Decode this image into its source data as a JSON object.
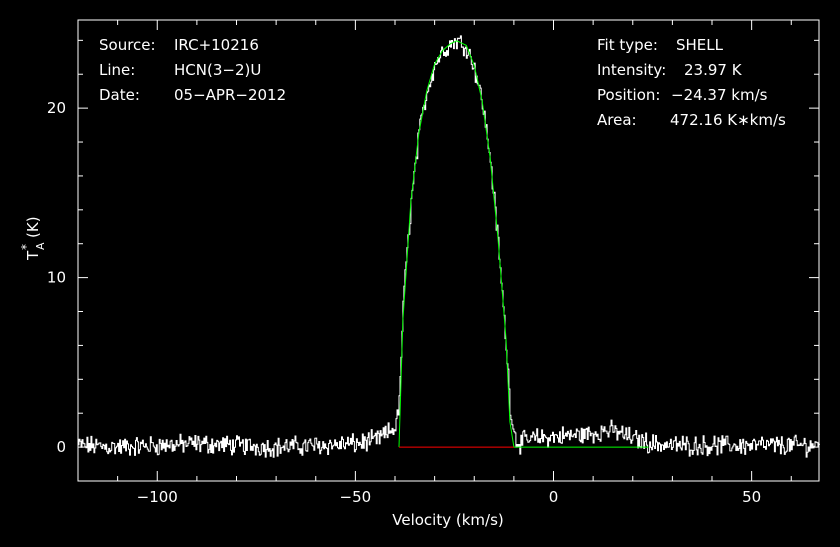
{
  "info_left": [
    {
      "key": "Source:",
      "value": "IRC+10216"
    },
    {
      "key": "Line:",
      "value": "HCN(3−2)U"
    },
    {
      "key": "Date:",
      "value": "05−APR−2012"
    }
  ],
  "info_right": [
    {
      "key": "Fit type:",
      "value": "SHELL"
    },
    {
      "key": "Intensity:",
      "value": "23.97 K"
    },
    {
      "key": "Position:",
      "value": "−24.37 km/s"
    },
    {
      "key": "Area:",
      "value": "472.16 K∗km/s"
    }
  ],
  "colors": {
    "background": "#000000",
    "frame": "#ffffff",
    "spectrum": "#ffffff",
    "fit": "#00ff00",
    "baseline": "#ff0000"
  },
  "chart_data": {
    "type": "line",
    "xlabel": "Velocity (km/s)",
    "ylabel_main": "T",
    "ylabel_sup": "*",
    "ylabel_sub": "A",
    "ylabel_unit": "(K)",
    "xlim": [
      -120,
      67
    ],
    "ylim": [
      -2,
      25.2
    ],
    "xticks": [
      -100,
      -50,
      0,
      50
    ],
    "xtick_labels": [
      "−100",
      "−50",
      "0",
      "50"
    ],
    "yticks": [
      0,
      10,
      20
    ],
    "ytick_labels": [
      "0",
      "10",
      "20"
    ],
    "grid": false,
    "series": [
      {
        "role": "observed spectrum",
        "x": [
          -120,
          -110,
          -100,
          -90,
          -80,
          -70,
          -60,
          -50,
          -45,
          -42,
          -40,
          -39,
          -38,
          -36,
          -34,
          -32,
          -30,
          -28,
          -26,
          -24.4,
          -22,
          -20,
          -18,
          -16,
          -14,
          -12,
          -11,
          -10,
          -9,
          -8,
          -5,
          0,
          5,
          10,
          13,
          16,
          20,
          25,
          30,
          40,
          50,
          60,
          67
        ],
        "y": [
          0.1,
          0.0,
          0.1,
          0.2,
          0.1,
          0.0,
          0.1,
          0.2,
          0.4,
          0.8,
          1.2,
          2.5,
          8.5,
          14.5,
          18.5,
          21.0,
          22.6,
          23.4,
          23.8,
          24.0,
          23.6,
          22.4,
          20.3,
          17.0,
          12.0,
          6.0,
          2.5,
          0.8,
          0.2,
          0.3,
          0.5,
          0.6,
          0.7,
          0.8,
          1.0,
          0.9,
          0.5,
          0.2,
          0.1,
          0.1,
          0.1,
          0.1,
          0.1
        ]
      },
      {
        "role": "shell fit",
        "x": [
          -39,
          -38,
          -36,
          -34,
          -32,
          -30,
          -28,
          -26,
          -24.4,
          -22,
          -20,
          -18,
          -16,
          -14,
          -12,
          -11,
          -10,
          -5,
          0,
          5,
          10,
          15,
          20,
          24
        ],
        "y": [
          0.0,
          7.5,
          14.5,
          18.5,
          21.0,
          22.6,
          23.4,
          23.8,
          23.97,
          23.7,
          22.5,
          20.4,
          17.1,
          12.3,
          6.4,
          1.5,
          0.0,
          0.0,
          0.0,
          0.0,
          0.0,
          0.0,
          0.0,
          0.0
        ]
      },
      {
        "role": "baseline window",
        "x": [
          -39,
          -10
        ],
        "y": [
          0,
          0
        ]
      }
    ]
  }
}
